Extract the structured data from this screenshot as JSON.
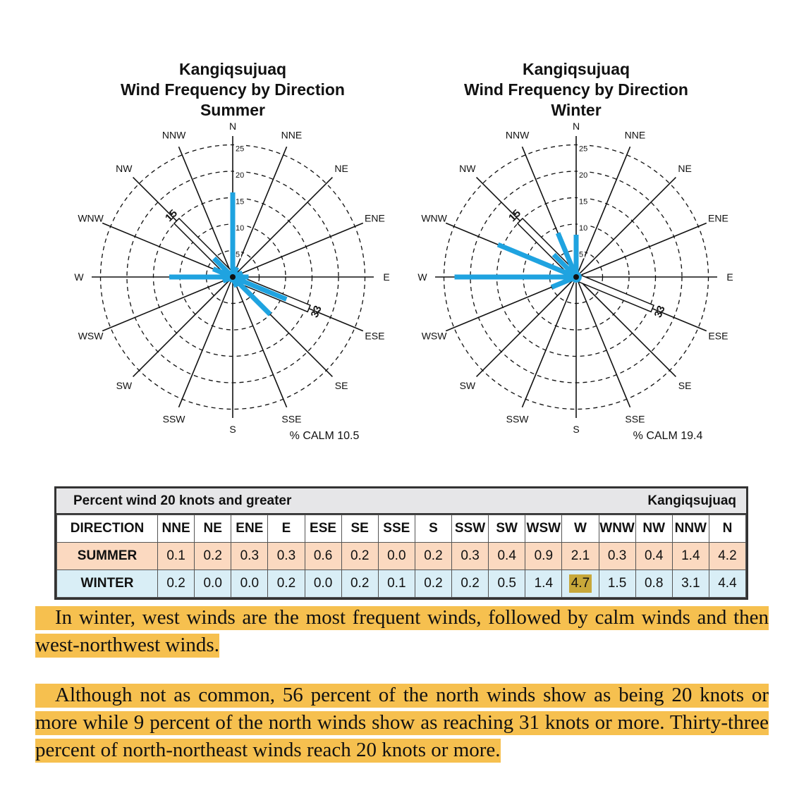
{
  "roses": [
    {
      "station": "Kangiqsujuaq",
      "subtitle": "Wind Frequency by Direction",
      "season": "Summer",
      "calm_label": "% CALM 10.5",
      "peak_marker": "33"
    },
    {
      "station": "Kangiqsujuaq",
      "subtitle": "Wind Frequency by Direction",
      "season": "Winter",
      "calm_label": "% CALM 19.4",
      "peak_marker": "33"
    }
  ],
  "chart_data": [
    {
      "type": "polar-bar",
      "title": "Kangiqsujuaq Wind Frequency by Direction Summer",
      "directions": [
        "N",
        "NNE",
        "NE",
        "ENE",
        "E",
        "ESE",
        "SE",
        "SSE",
        "S",
        "SSW",
        "SW",
        "WSW",
        "W",
        "WNW",
        "NW",
        "NNW"
      ],
      "values": [
        16,
        2,
        1,
        2,
        3,
        11,
        10,
        2,
        1,
        1,
        1,
        2,
        12,
        4,
        5,
        1
      ],
      "rings": [
        5,
        10,
        15,
        20,
        25
      ],
      "outline_bars": {
        "NW": 15,
        "ESE": 33
      },
      "calm_percent": 10.5
    },
    {
      "type": "polar-bar",
      "title": "Kangiqsujuaq Wind Frequency by Direction Winter",
      "directions": [
        "N",
        "NNE",
        "NE",
        "ENE",
        "E",
        "ESE",
        "SE",
        "SSE",
        "S",
        "SSW",
        "SW",
        "WSW",
        "W",
        "WNW",
        "NW",
        "NNW"
      ],
      "values": [
        8,
        1,
        1,
        1,
        1,
        1,
        1,
        1,
        1,
        1,
        1,
        5,
        23,
        16,
        6,
        9
      ],
      "rings": [
        5,
        10,
        15,
        20,
        25
      ],
      "outline_bars": {
        "NW": 15,
        "ESE": 33
      },
      "calm_percent": 19.4
    }
  ],
  "colors": {
    "bar": "#1fa3e0",
    "highlight": "#f6c04f",
    "summer_row": "#fbd9c0",
    "winter_row": "#d9eef6",
    "cell_highlight": "#c8a83a"
  },
  "table": {
    "title": "Percent wind 20 knots and greater",
    "station": "Kangiqsujuaq",
    "header_label": "DIRECTION",
    "columns": [
      "NNE",
      "NE",
      "ENE",
      "E",
      "ESE",
      "SE",
      "SSE",
      "S",
      "SSW",
      "SW",
      "WSW",
      "W",
      "WNW",
      "NW",
      "NNW",
      "N"
    ],
    "rows": [
      {
        "label": "SUMMER",
        "values": [
          "0.1",
          "0.2",
          "0.3",
          "0.3",
          "0.6",
          "0.2",
          "0.0",
          "0.2",
          "0.3",
          "0.4",
          "0.9",
          "2.1",
          "0.3",
          "0.4",
          "1.4",
          "4.2"
        ]
      },
      {
        "label": "WINTER",
        "values": [
          "0.2",
          "0.0",
          "0.0",
          "0.2",
          "0.0",
          "0.2",
          "0.1",
          "0.2",
          "0.2",
          "0.5",
          "1.4",
          "4.7",
          "1.5",
          "0.8",
          "3.1",
          "4.4"
        ]
      }
    ]
  },
  "paragraphs": [
    "In winter, west winds are the most frequent winds, followed by calm winds and then west-northwest winds.",
    "Although not as common, 56 percent of the north winds show as being 20 knots or more while 9 percent of the north winds show as reaching 31 knots or more. Thirty-three percent of north-northeast winds reach 20 knots or more."
  ]
}
